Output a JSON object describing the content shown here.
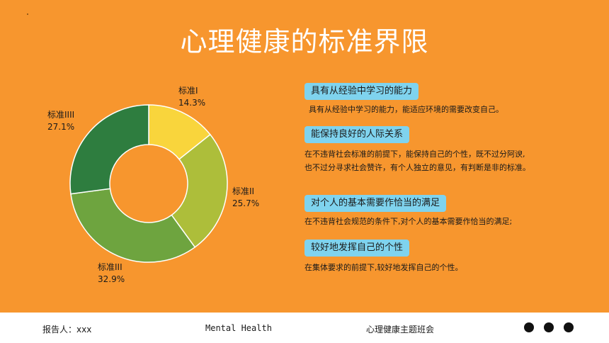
{
  "title": "心理健康的标准界限",
  "chart_data": {
    "type": "pie",
    "donut": true,
    "categories": [
      "标准I",
      "标准II",
      "标准III",
      "标准IIII"
    ],
    "values": [
      14.3,
      25.7,
      32.9,
      27.1
    ],
    "value_labels": [
      "14.3%",
      "25.7%",
      "32.9%",
      "27.1%"
    ],
    "colors": [
      "#F9D53C",
      "#ADBE3A",
      "#6EA43F",
      "#2E7D3F"
    ]
  },
  "standards": [
    {
      "tag": "具有从经验中学习的能力",
      "lines": [
        "具有从经验中学习的能力，能适应环境的需要改变自己。"
      ]
    },
    {
      "tag": "能保持良好的人际关系",
      "lines": [
        "在不违背社会标准的前提下，能保持自己的个性，既不过分阿谀,",
        "也不过分寻求社会赞许，有个人独立的意见，有判断是非的标准。"
      ]
    },
    {
      "tag": "对个人的基本需要作恰当的满足",
      "lines": [
        "在不违背社会规范的条件下,对个人的基本需要作恰当的满足;"
      ]
    },
    {
      "tag": "较好地发挥自己的个性",
      "lines": [
        "在集体要求的前提下,较好地发挥自己的个性。"
      ]
    }
  ],
  "footer": {
    "reporter": "报告人：xxx",
    "subject": "Mental Health",
    "meeting": "心理健康主题班会"
  }
}
